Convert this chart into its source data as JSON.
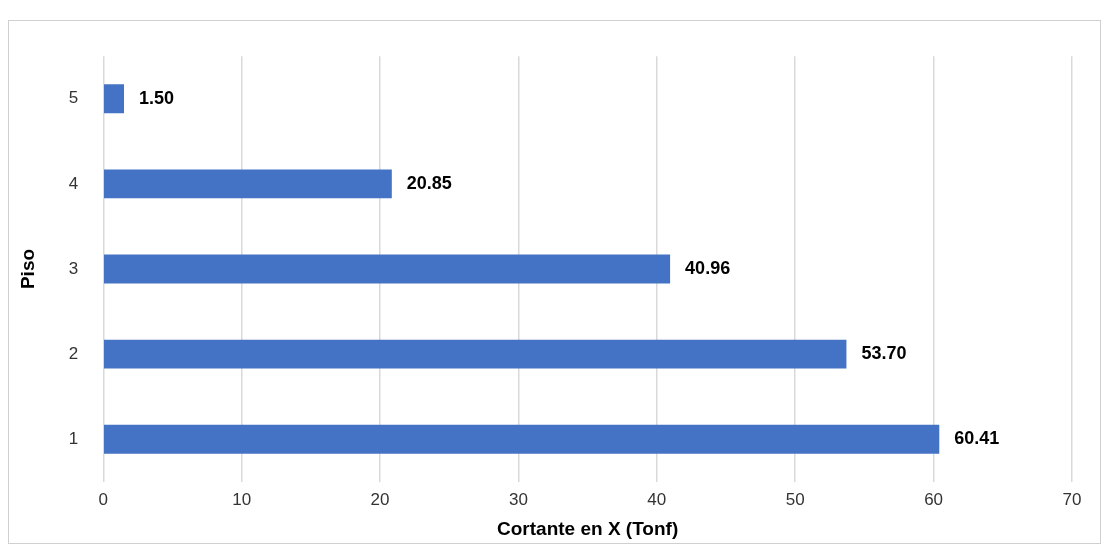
{
  "chart_data": {
    "type": "bar",
    "orientation": "horizontal",
    "categories": [
      "5",
      "4",
      "3",
      "2",
      "1"
    ],
    "values": [
      1.5,
      20.85,
      40.96,
      53.7,
      60.41
    ],
    "color": "#4472c4",
    "value_labels": [
      "1.50",
      "20.85",
      "40.96",
      "53.70",
      "60.41"
    ],
    "xlim": [
      0,
      70
    ],
    "xticks": [
      0,
      10,
      20,
      30,
      40,
      50,
      60,
      70
    ],
    "grid": "x",
    "legend": false,
    "xlabel": "Cortante en X (Tonf)",
    "ylabel": "Piso"
  }
}
